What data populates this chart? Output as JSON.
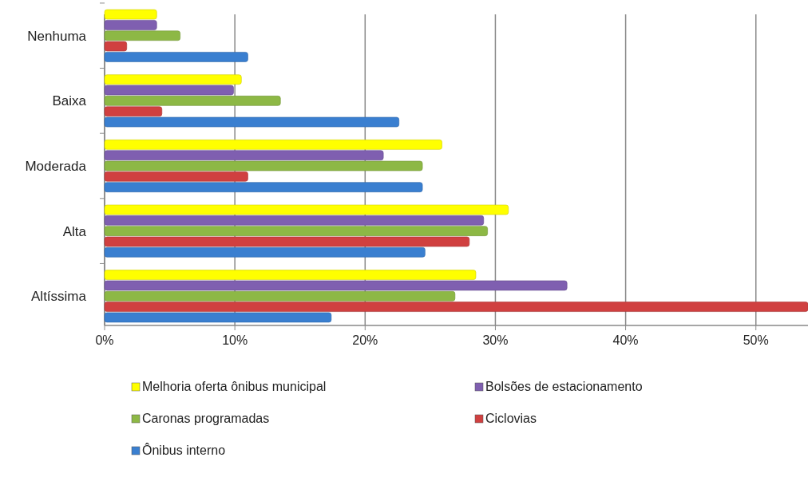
{
  "chart_data": {
    "type": "bar",
    "orientation": "horizontal",
    "categories": [
      "Nenhuma",
      "Baixa",
      "Moderada",
      "Alta",
      "Altíssima"
    ],
    "series": [
      {
        "name": "Melhoria oferta ônibus municipal",
        "color": "#ffff00",
        "values": [
          4.0,
          10.5,
          25.9,
          31.0,
          28.5
        ]
      },
      {
        "name": "Bolsões de estacionamento",
        "color": "#7f5fb0",
        "values": [
          4.0,
          9.9,
          21.4,
          29.1,
          35.5
        ]
      },
      {
        "name": "Caronas programadas",
        "color": "#8db845",
        "values": [
          5.8,
          13.5,
          24.4,
          29.4,
          26.9
        ]
      },
      {
        "name": "Ciclovias",
        "color": "#d04040",
        "values": [
          1.7,
          4.4,
          11.0,
          28.0,
          54
        ]
      },
      {
        "name": "Ônibus interno",
        "color": "#3a7fd0",
        "values": [
          11.0,
          22.6,
          24.4,
          24.6,
          17.4
        ]
      }
    ],
    "xlim": [
      0,
      54
    ],
    "xticks": [
      {
        "value": 0,
        "label": "0%"
      },
      {
        "value": 10,
        "label": "10%"
      },
      {
        "value": 20,
        "label": "20%"
      },
      {
        "value": 30,
        "label": "30%"
      },
      {
        "value": 40,
        "label": "40%"
      },
      {
        "value": 50,
        "label": "50%"
      }
    ],
    "grid": "x",
    "legend": "bottom"
  }
}
